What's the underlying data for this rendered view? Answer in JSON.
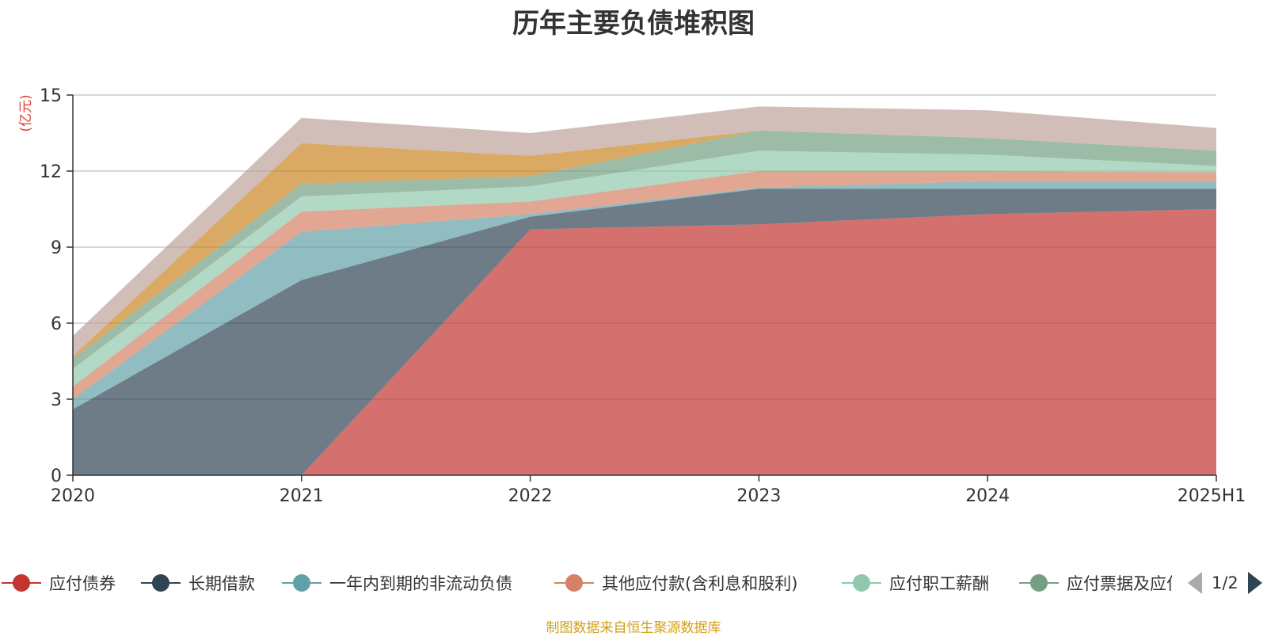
{
  "chart_data": {
    "type": "area",
    "stacked": true,
    "title": "历年主要负债堆积图",
    "ylabel": "(亿元)",
    "xlabel": "",
    "categories": [
      "2020",
      "2021",
      "2022",
      "2023",
      "2024",
      "2025H1"
    ],
    "ylim": [
      0,
      15
    ],
    "yticks": [
      0,
      3,
      6,
      9,
      12,
      15
    ],
    "grid": true,
    "legend_position": "bottom",
    "series": [
      {
        "name": "应付债券",
        "color": "#c23531",
        "values": [
          0,
          0,
          9.7,
          9.9,
          10.3,
          10.5
        ]
      },
      {
        "name": "长期借款",
        "color": "#2f4554",
        "values": [
          2.6,
          7.7,
          0.5,
          1.4,
          1.0,
          0.8
        ]
      },
      {
        "name": "一年内到期的非流动负债",
        "color": "#61a0a8",
        "values": [
          0.4,
          1.9,
          0.1,
          0.05,
          0.3,
          0.3
        ]
      },
      {
        "name": "其他应付款(含利息和股利)",
        "color": "#d48265",
        "values": [
          0.5,
          0.8,
          0.5,
          0.65,
          0.4,
          0.35
        ]
      },
      {
        "name": "应付职工薪酬",
        "color": "#91c7ae",
        "values": [
          0.7,
          0.6,
          0.6,
          0.8,
          0.65,
          0.25
        ]
      },
      {
        "name": "应付票据及应付账款",
        "color": "#749f83",
        "values": [
          0.4,
          0.5,
          0.4,
          0.8,
          0.65,
          0.6
        ]
      },
      {
        "name": "",
        "color": "#ca8622",
        "values": [
          0.1,
          1.6,
          0.8,
          0.0,
          0.0,
          0.0
        ]
      },
      {
        "name": "",
        "color": "#bda29a",
        "values": [
          0.8,
          1.0,
          0.9,
          0.95,
          1.1,
          0.9
        ]
      }
    ]
  },
  "legend": {
    "page_text": "1/2"
  },
  "footer": {
    "source_text": "制图数据来自恒生聚源数据库"
  },
  "colors": {
    "axis": "#333333",
    "grid": "#cccccc",
    "unit_label": "#e03c31",
    "footer": "#d4a017"
  }
}
